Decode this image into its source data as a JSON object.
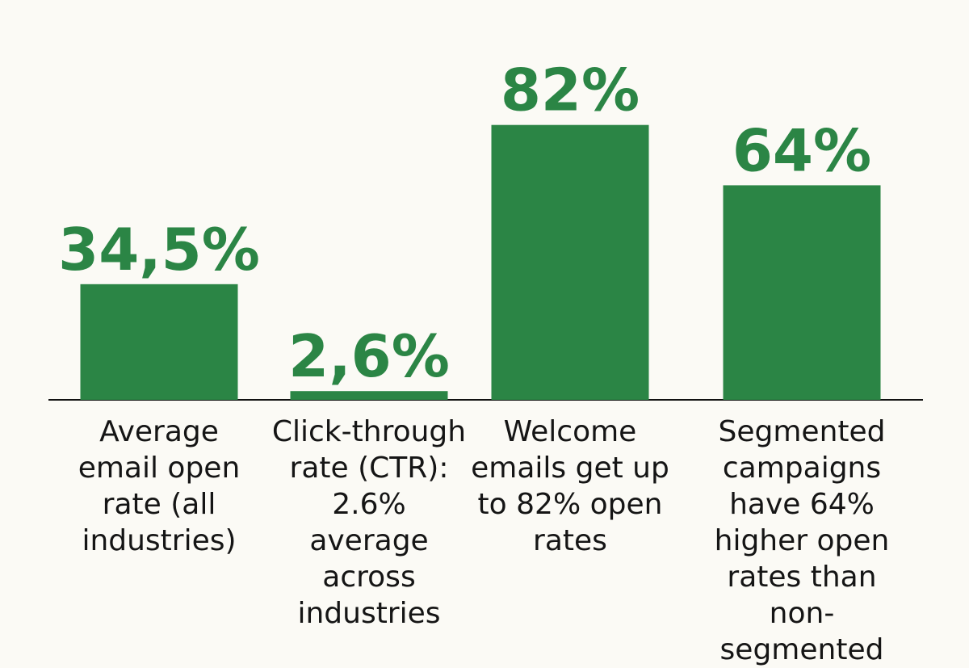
{
  "chart_data": {
    "type": "bar",
    "categories": [
      "Average email open rate (all industries)",
      "Click-through rate (CTR): 2.6% average across industries",
      "Welcome emails get up to 82% open rates",
      "Segmented campaigns have 64% higher open rates than non-segmented"
    ],
    "values": [
      34.5,
      2.6,
      82,
      64
    ],
    "value_labels": [
      "34,5%",
      "2,6%",
      "82%",
      "64%"
    ],
    "color": "#2b8545"
  }
}
